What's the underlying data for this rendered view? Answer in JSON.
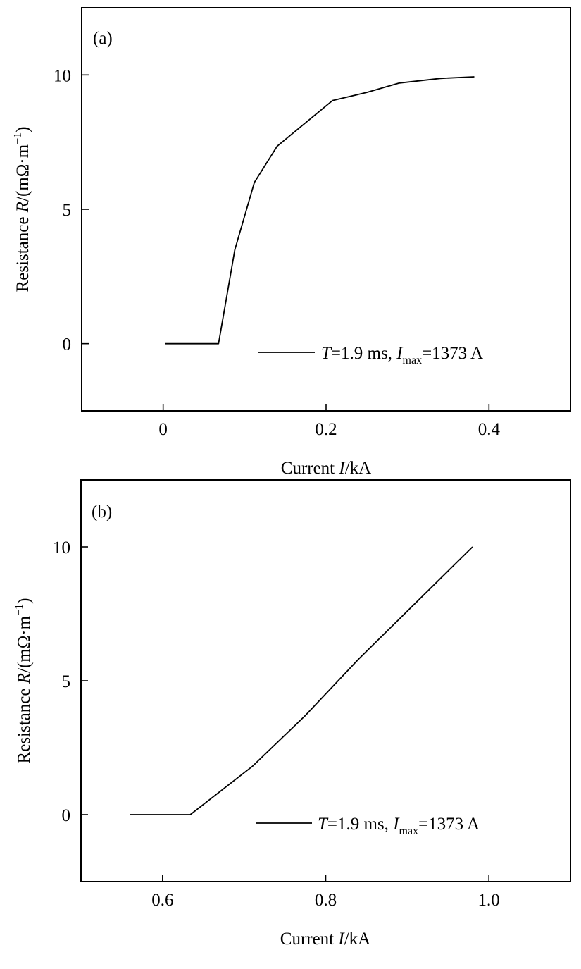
{
  "chart_data": [
    {
      "type": "line",
      "panel_label": "(a)",
      "xlabel": {
        "prefix": "Current ",
        "var": "I",
        "suffix": "/kA"
      },
      "ylabel": {
        "prefix": "Resistance ",
        "var": "R",
        "mid": "/(mΩ·m",
        "sup": "−1",
        "end": ")"
      },
      "xlim": [
        -0.1,
        0.5
      ],
      "ylim": [
        -2.5,
        12.5
      ],
      "xticks": [
        0,
        0.2,
        0.4
      ],
      "xtick_labels": [
        "0",
        "0.2",
        "0.4"
      ],
      "yticks": [
        0,
        5,
        10
      ],
      "ytick_labels": [
        "0",
        "5",
        "10"
      ],
      "grid": false,
      "legend_position": "bottom-right",
      "series": [
        {
          "legend": {
            "t_var": "T",
            "t_text": "=1.9 ms, ",
            "i_var": "I",
            "i_sub": "max",
            "i_text": "=1373 A"
          },
          "color": "#000000",
          "points": [
            [
              0.002,
              0
            ],
            [
              0.068,
              0
            ],
            [
              0.088,
              3.5
            ],
            [
              0.112,
              6.0
            ],
            [
              0.14,
              7.35
            ],
            [
              0.17,
              8.1
            ],
            [
              0.208,
              9.05
            ],
            [
              0.25,
              9.35
            ],
            [
              0.29,
              9.7
            ],
            [
              0.34,
              9.87
            ],
            [
              0.382,
              9.93
            ]
          ]
        }
      ]
    },
    {
      "type": "line",
      "panel_label": "(b)",
      "xlabel": {
        "prefix": "Current ",
        "var": "I",
        "suffix": "/kA"
      },
      "ylabel": {
        "prefix": "Resistance ",
        "var": "R",
        "mid": "/(mΩ·m",
        "sup": "−1",
        "end": ")"
      },
      "xlim": [
        0.5,
        1.1
      ],
      "ylim": [
        -2.5,
        12.5
      ],
      "xticks": [
        0.6,
        0.8,
        1.0
      ],
      "xtick_labels": [
        "0.6",
        "0.8",
        "1.0"
      ],
      "yticks": [
        0,
        5,
        10
      ],
      "ytick_labels": [
        "0",
        "5",
        "10"
      ],
      "grid": false,
      "legend_position": "bottom-right",
      "series": [
        {
          "legend": {
            "t_var": "T",
            "t_text": "=1.9 ms, ",
            "i_var": "I",
            "i_sub": "max",
            "i_text": "=1373 A"
          },
          "color": "#000000",
          "points": [
            [
              0.56,
              0
            ],
            [
              0.634,
              0
            ],
            [
              0.71,
              1.8
            ],
            [
              0.775,
              3.7
            ],
            [
              0.84,
              5.8
            ],
            [
              0.91,
              7.9
            ],
            [
              0.98,
              10.0
            ]
          ]
        }
      ]
    }
  ]
}
